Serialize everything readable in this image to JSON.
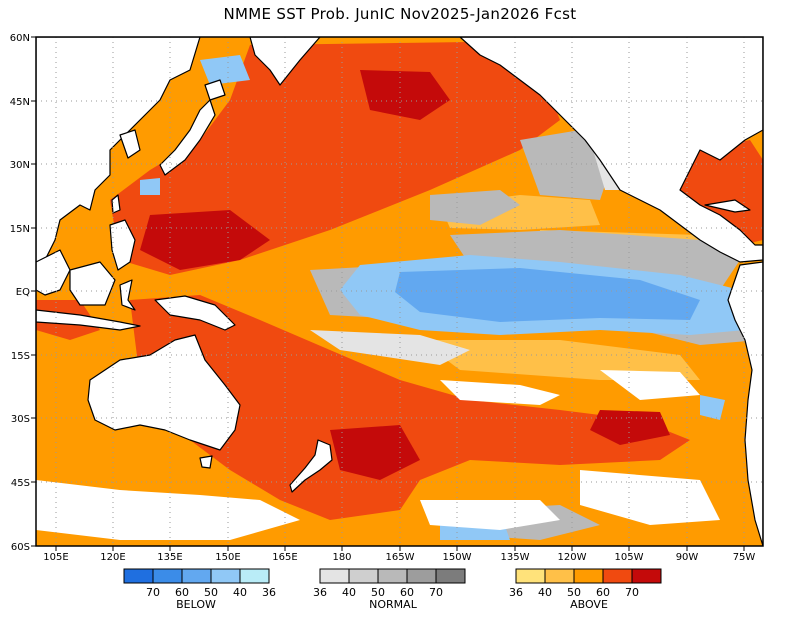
{
  "title": "NMME SST Prob. JunIC  Nov2025-Jan2026 Fcst",
  "axes": {
    "lat_ticks": [
      "60N",
      "45N",
      "30N",
      "15N",
      "EQ",
      "15S",
      "30S",
      "45S",
      "60S"
    ],
    "lon_ticks": [
      "105E",
      "120E",
      "135E",
      "150E",
      "165E",
      "180",
      "165W",
      "150W",
      "135W",
      "120W",
      "105W",
      "90W",
      "75W"
    ]
  },
  "legend": {
    "below": {
      "label": "BELOW",
      "colors": [
        "#1f6fe0",
        "#3b8ce8",
        "#62a8f0",
        "#90c8f6",
        "#b9ecf7"
      ],
      "ticks": [
        "70",
        "60",
        "50",
        "40",
        "36"
      ]
    },
    "normal": {
      "label": "NORMAL",
      "colors": [
        "#e4e4e4",
        "#cfcfcf",
        "#b9b9b9",
        "#9d9d9d",
        "#7c7c7c"
      ],
      "ticks": [
        "36",
        "40",
        "50",
        "60",
        "70"
      ]
    },
    "above": {
      "label": "ABOVE",
      "colors": [
        "#ffe27a",
        "#ffc048",
        "#ff9b00",
        "#f04a10",
        "#c40a0a"
      ],
      "ticks": [
        "36",
        "40",
        "50",
        "60",
        "70"
      ]
    }
  },
  "colors": {
    "land": "#ffffff",
    "coast": "#000000",
    "grid": "#9a9a9a"
  }
}
